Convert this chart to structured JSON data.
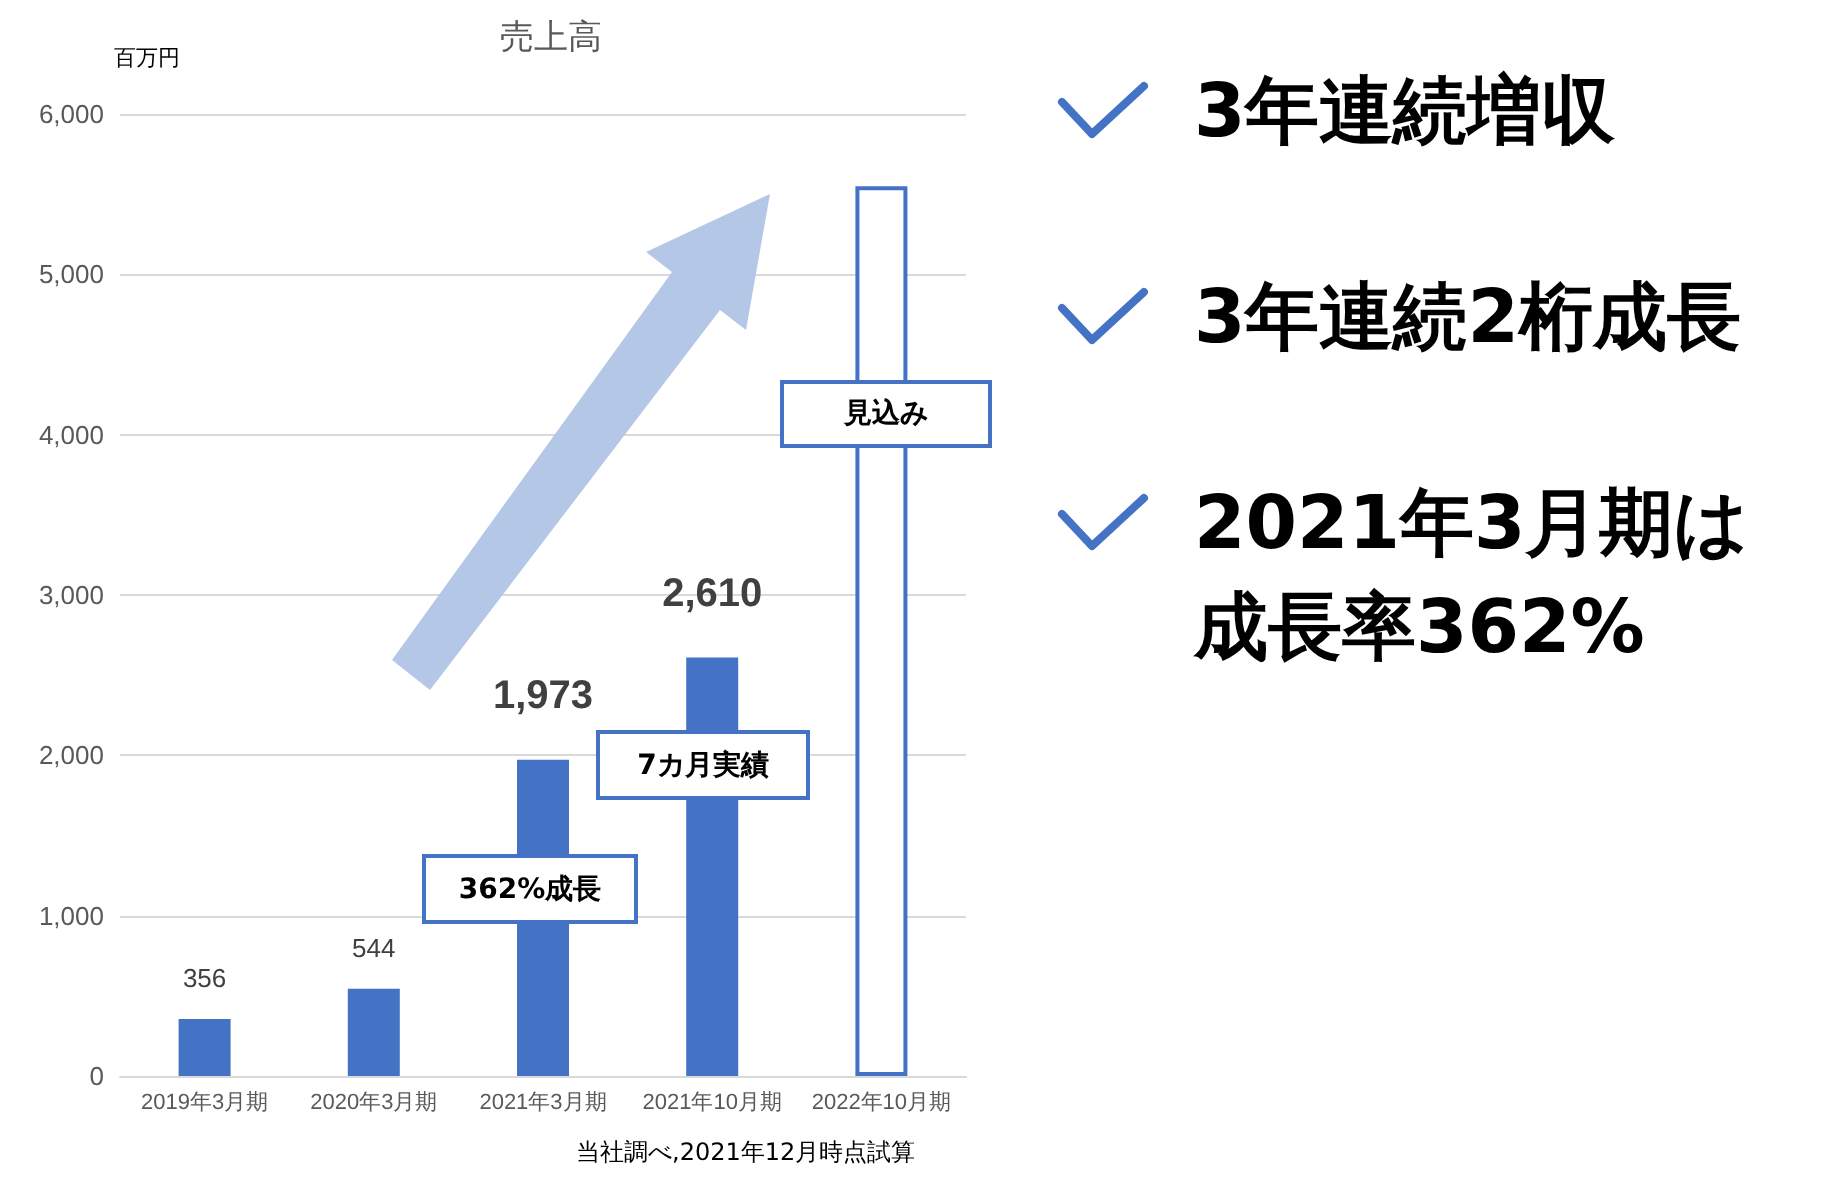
{
  "chart_data": {
    "type": "bar",
    "title": "売上高",
    "ylabel": "百万円",
    "categories": [
      "2019年3月期",
      "2020年3月期",
      "2021年3月期",
      "2021年10月期",
      "2022年10月期"
    ],
    "series": [
      {
        "color": "#4472c4",
        "values": [
          356,
          544,
          1973,
          2610,
          null
        ],
        "value_labels": [
          "356",
          "544",
          "1,973",
          "2,610",
          null
        ]
      },
      {
        "color": "#ffffff",
        "values": [
          null,
          null,
          null,
          null,
          5550
        ]
      }
    ],
    "ylim": [
      0,
      6000
    ],
    "yticks": [
      0,
      {
        "value": 1000,
        "label": "1,000"
      },
      {
        "value": 2000,
        "label": "2,000"
      },
      {
        "value": 3000,
        "label": "3,000"
      },
      {
        "value": 4000,
        "label": "4,000"
      },
      {
        "value": 5000,
        "label": "5,000"
      },
      {
        "value": 6000,
        "label": "6,000"
      }
    ],
    "grid": "y",
    "annotations": [
      "見込み",
      "7カ月実績",
      "362%成長",
      "当社調べ,2021年12月時点試算",
      "3年連続増収",
      "3年連続2桁成長",
      "2021年3月期は",
      "成長率362%"
    ]
  }
}
